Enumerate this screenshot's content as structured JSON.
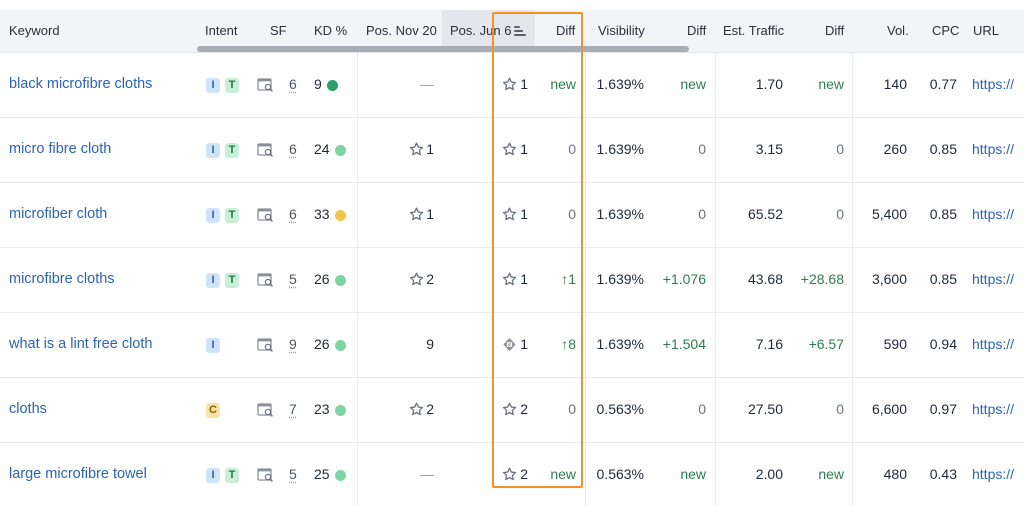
{
  "header": {
    "keyword": "Keyword",
    "intent": "Intent",
    "sf": "SF",
    "kd": "KD %",
    "pos_nov": "Pos. Nov 20",
    "pos_jun": "Pos. Jun 6",
    "diff": "Diff",
    "visibility": "Visibility",
    "vis_diff": "Diff",
    "traffic": "Est. Traffic",
    "traffic_diff": "Diff",
    "vol": "Vol.",
    "cpc": "CPC",
    "url": "URL"
  },
  "colors": {
    "kd_dark_green": "#2e9e6a",
    "kd_light_green": "#7dd6a1",
    "kd_yellow": "#f1c644",
    "highlight": "#f0932b"
  },
  "rows": [
    {
      "keyword": "black microfibre cloths",
      "intents": [
        "I",
        "T"
      ],
      "sf": "6",
      "kd": "9",
      "kd_color": "dark_green",
      "pos_nov": "—",
      "pos_nov_icon": "none",
      "pos_jun": "1",
      "pos_jun_icon": "star-icon",
      "diff": "new",
      "visibility": "1.639%",
      "vis_diff": "new",
      "traffic": "1.70",
      "traffic_diff": "new",
      "vol": "140",
      "cpc": "0.77",
      "url": "https://"
    },
    {
      "keyword": "micro fibre cloth",
      "intents": [
        "I",
        "T"
      ],
      "sf": "6",
      "kd": "24",
      "kd_color": "light_green",
      "pos_nov": "1",
      "pos_nov_icon": "star-icon",
      "pos_jun": "1",
      "pos_jun_icon": "star-icon",
      "diff": "0",
      "visibility": "1.639%",
      "vis_diff": "0",
      "traffic": "3.15",
      "traffic_diff": "0",
      "vol": "260",
      "cpc": "0.85",
      "url": "https://"
    },
    {
      "keyword": "microfiber cloth",
      "intents": [
        "I",
        "T"
      ],
      "sf": "6",
      "kd": "33",
      "kd_color": "yellow",
      "pos_nov": "1",
      "pos_nov_icon": "star-icon",
      "pos_jun": "1",
      "pos_jun_icon": "star-icon",
      "diff": "0",
      "visibility": "1.639%",
      "vis_diff": "0",
      "traffic": "65.52",
      "traffic_diff": "0",
      "vol": "5,400",
      "cpc": "0.85",
      "url": "https://"
    },
    {
      "keyword": "microfibre cloths",
      "intents": [
        "I",
        "T"
      ],
      "sf": "5",
      "kd": "26",
      "kd_color": "light_green",
      "pos_nov": "2",
      "pos_nov_icon": "star-icon",
      "pos_jun": "1",
      "pos_jun_icon": "star-icon",
      "diff": "↑1",
      "visibility": "1.639%",
      "vis_diff": "+1.076",
      "traffic": "43.68",
      "traffic_diff": "+28.68",
      "vol": "3,600",
      "cpc": "0.85",
      "url": "https://"
    },
    {
      "keyword": "what is a lint free cloth",
      "intents": [
        "I"
      ],
      "sf": "9",
      "kd": "26",
      "kd_color": "light_green",
      "pos_nov": "9",
      "pos_nov_icon": "none",
      "pos_jun": "1",
      "pos_jun_icon": "snippet-icon",
      "diff": "↑8",
      "visibility": "1.639%",
      "vis_diff": "+1.504",
      "traffic": "7.16",
      "traffic_diff": "+6.57",
      "vol": "590",
      "cpc": "0.94",
      "url": "https://"
    },
    {
      "keyword": "cloths",
      "intents": [
        "C"
      ],
      "sf": "7",
      "kd": "23",
      "kd_color": "light_green",
      "pos_nov": "2",
      "pos_nov_icon": "star-icon",
      "pos_jun": "2",
      "pos_jun_icon": "star-icon",
      "diff": "0",
      "visibility": "0.563%",
      "vis_diff": "0",
      "traffic": "27.50",
      "traffic_diff": "0",
      "vol": "6,600",
      "cpc": "0.97",
      "url": "https://"
    },
    {
      "keyword": "large microfibre towel",
      "intents": [
        "I",
        "T"
      ],
      "sf": "5",
      "kd": "25",
      "kd_color": "light_green",
      "pos_nov": "—",
      "pos_nov_icon": "none",
      "pos_jun": "2",
      "pos_jun_icon": "star-icon",
      "diff": "new",
      "visibility": "0.563%",
      "vis_diff": "new",
      "traffic": "2.00",
      "traffic_diff": "new",
      "vol": "480",
      "cpc": "0.43",
      "url": "https://"
    }
  ]
}
